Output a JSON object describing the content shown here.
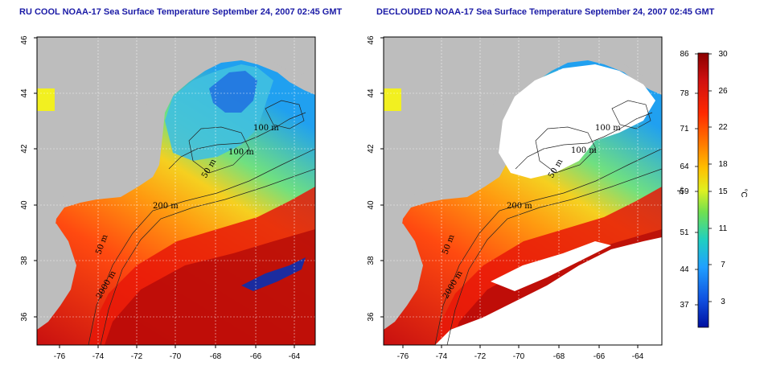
{
  "maps": [
    {
      "id": "left",
      "title": "RU COOL NOAA-17 Sea Surface Temperature September 24, 2007 02:45 GMT"
    },
    {
      "id": "right",
      "title": "DECLOUDED NOAA-17 Sea Surface Temperature September 24, 2007 02:45 GMT"
    }
  ],
  "axes": {
    "lon_ticks": [
      "-76",
      "-74",
      "-72",
      "-70",
      "-68",
      "-66",
      "-64"
    ],
    "lat_ticks": [
      "36",
      "38",
      "40",
      "42",
      "44",
      "46"
    ],
    "lon_range": [
      -77,
      -63
    ],
    "lat_range": [
      35,
      46
    ]
  },
  "contour_labels": {
    "left": [
      "100 m",
      "100 m",
      "50 m",
      "200 m",
      "50 m",
      "2000 m"
    ],
    "right": [
      "100 m",
      "100 m",
      "50 m",
      "200 m",
      "50 m",
      "2000 m"
    ]
  },
  "colorbar": {
    "fahrenheit_unit": "°F",
    "celsius_unit": "°C",
    "fahrenheit_ticks": [
      "86",
      "78",
      "71",
      "64",
      "59",
      "51",
      "44",
      "37"
    ],
    "celsius_ticks": [
      "30",
      "26",
      "22",
      "18",
      "15",
      "11",
      "7",
      "3"
    ],
    "gradient_colors": [
      "#8b0000",
      "#d01010",
      "#ff2a00",
      "#ff7a00",
      "#ffc000",
      "#e0f020",
      "#70e050",
      "#20d0c0",
      "#20a0ff",
      "#1050e0",
      "#0010a0"
    ]
  },
  "colors": {
    "land": "#bdbdbd",
    "cloud": "#ffffff",
    "title": "#1a1aa6"
  }
}
